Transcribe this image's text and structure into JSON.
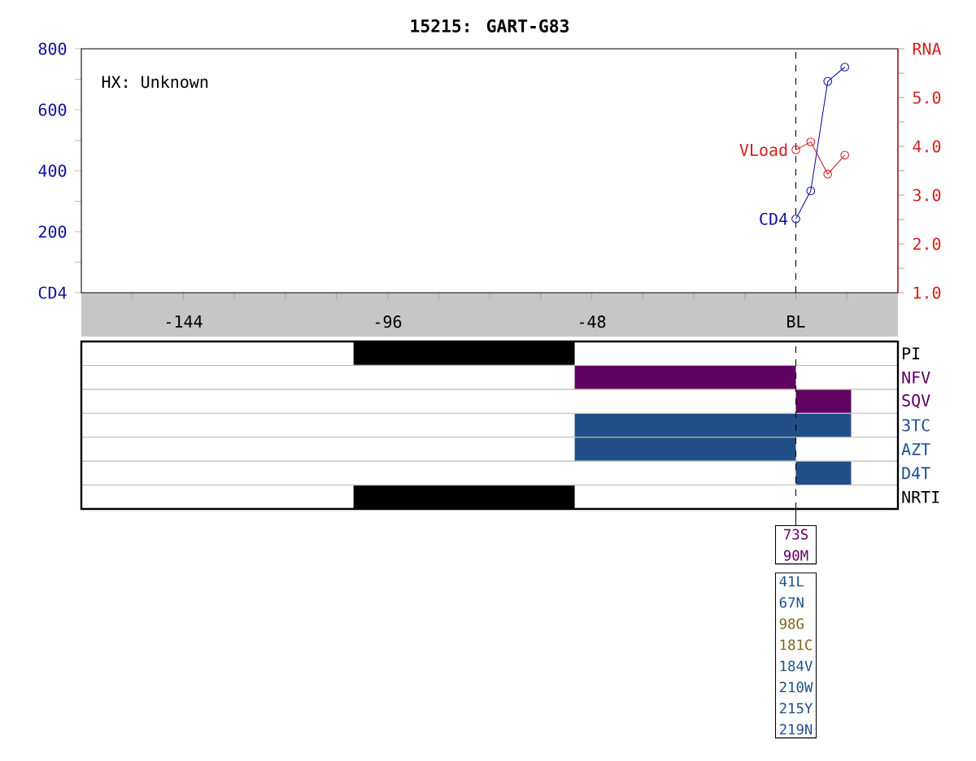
{
  "chart_data": [
    {
      "type": "line",
      "title": "15215: GART-G83",
      "annotations": [
        "HX: Unknown"
      ],
      "xlim": [
        -168,
        24
      ],
      "xticks": [
        {
          "value": -156,
          "label": null
        },
        {
          "value": -144,
          "label": "-144"
        },
        {
          "value": -132,
          "label": null
        },
        {
          "value": -120,
          "label": null
        },
        {
          "value": -108,
          "label": null
        },
        {
          "value": -96,
          "label": "-96"
        },
        {
          "value": -84,
          "label": null
        },
        {
          "value": -72,
          "label": null
        },
        {
          "value": -60,
          "label": null
        },
        {
          "value": -48,
          "label": "-48"
        },
        {
          "value": -36,
          "label": null
        },
        {
          "value": -24,
          "label": null
        },
        {
          "value": -12,
          "label": null
        },
        {
          "value": 0,
          "label": "BL"
        },
        {
          "value": 12,
          "label": null
        }
      ],
      "ylim": [
        0,
        800
      ],
      "yticks": [
        {
          "value": 0,
          "label": "CD4"
        },
        {
          "value": 100,
          "label": null
        },
        200,
        {
          "value": 300,
          "label": null
        },
        400,
        {
          "value": 500,
          "label": null
        },
        600,
        {
          "value": 700,
          "label": null
        },
        800
      ],
      "y2lim": [
        1,
        6
      ],
      "y2ticks": [
        {
          "value": 1,
          "label": "1.0"
        },
        {
          "value": 1.5,
          "label": null
        },
        {
          "value": 2,
          "label": "2.0"
        },
        {
          "value": 2.5,
          "label": null
        },
        {
          "value": 3,
          "label": "3.0"
        },
        {
          "value": 3.5,
          "label": null
        },
        {
          "value": 4,
          "label": "4.0"
        },
        {
          "value": 4.5,
          "label": null
        },
        {
          "value": 5,
          "label": "5.0"
        },
        {
          "value": 5.5,
          "label": null
        },
        {
          "value": 6,
          "label": "RNA"
        }
      ],
      "marker": "circle",
      "series": [
        {
          "name": "CD4",
          "color": "#1010a0",
          "x": [
            0,
            3.5,
            7.5,
            11.5
          ],
          "values": [
            242,
            334,
            693,
            740
          ]
        },
        {
          "name": "VLoad",
          "color": "#d02020",
          "axis": "y2",
          "x": [
            0,
            3.5,
            7.5,
            11.5
          ],
          "values": [
            3.93,
            4.09,
            3.43,
            3.82
          ]
        }
      ],
      "ref_lines": [
        {
          "axis": "x",
          "value": 0,
          "line_style": "dashed",
          "color": "#000000"
        }
      ]
    },
    {
      "type": "bar",
      "orientation": "horizontal",
      "categories": [
        "PI",
        "NFV",
        "SQV",
        "3TC",
        "AZT",
        "D4T",
        "NRTI"
      ],
      "base": [
        -104,
        -52,
        0,
        -52,
        -52,
        0,
        -104
      ],
      "values": [
        52,
        52,
        13,
        65,
        52,
        13,
        52
      ],
      "colors": [
        "#000000",
        "#600060",
        "#600060",
        "#204f88",
        "#204f88",
        "#204f88",
        "#000000"
      ],
      "xlim": [
        -168,
        24
      ],
      "tick_labels": "y",
      "grid": "y",
      "ref_lines": [
        {
          "axis": "x",
          "value": 0,
          "line_style": "dashed",
          "color": "#000000"
        }
      ],
      "annotations": [
        "73S",
        "90M",
        "41L",
        "67N",
        "98G",
        "181C",
        "184V",
        "210W",
        "215Y",
        "219N"
      ]
    }
  ]
}
